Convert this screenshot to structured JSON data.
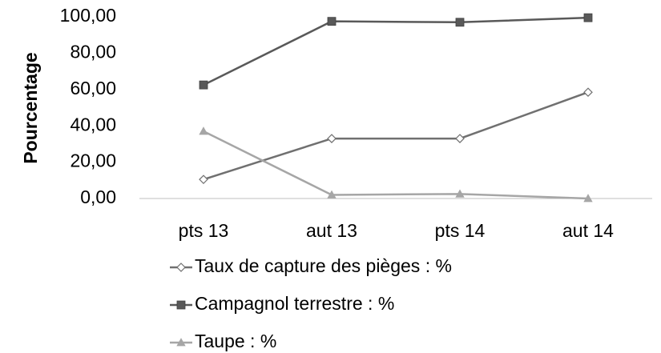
{
  "chart_data": {
    "type": "line",
    "y_label": "Pourcentage",
    "categories": [
      "pts 13",
      "aut 13",
      "pts 14",
      "aut 14"
    ],
    "ylim": [
      0,
      100
    ],
    "yticks": [
      {
        "value": 0,
        "label": "0,00"
      },
      {
        "value": 20,
        "label": "20,00"
      },
      {
        "value": 40,
        "label": "40,00"
      },
      {
        "value": 60,
        "label": "60,00"
      },
      {
        "value": 80,
        "label": "80,00"
      },
      {
        "value": 100,
        "label": "100,00"
      }
    ],
    "grid": false,
    "legend": "bottom",
    "series": [
      {
        "name": "Taux de capture des pièges : %",
        "color": "#707070",
        "marker": "diamond",
        "values": [
          10.5,
          33,
          33,
          58.5
        ]
      },
      {
        "name": "Campagnol terrestre : %",
        "color": "#595959",
        "marker": "square",
        "values": [
          62.5,
          97.5,
          97,
          99.5
        ]
      },
      {
        "name": "Taupe : %",
        "color": "#a6a6a6",
        "marker": "triangle",
        "values": [
          37,
          2,
          2.5,
          0
        ]
      }
    ]
  }
}
